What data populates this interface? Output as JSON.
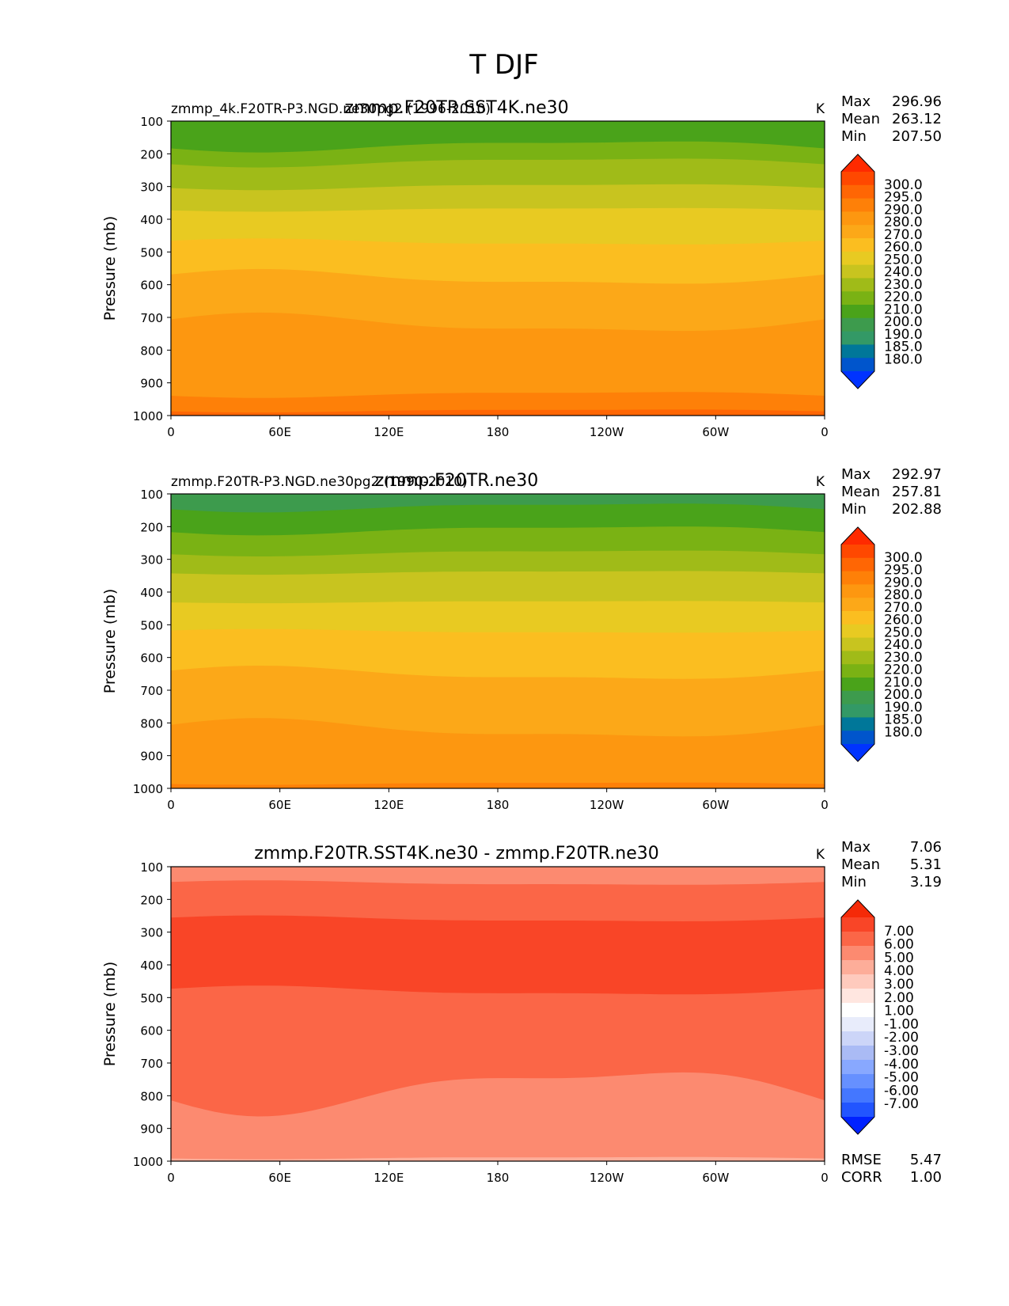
{
  "figure": {
    "title": "T DJF"
  },
  "colors": {
    "abs_levels": [
      "#0033ff",
      "#0055cc",
      "#007799",
      "#339966",
      "#3d9b4d",
      "#4aa31a",
      "#7ab214",
      "#a0bb18",
      "#c8c41f",
      "#e8ca22",
      "#fbbe20",
      "#fca818",
      "#fd9710",
      "#fe8008",
      "#ff6604",
      "#ff4800",
      "#ff2a00"
    ],
    "diff_levels": [
      "#0022ff",
      "#2255ff",
      "#4477ff",
      "#6690ff",
      "#88a8ff",
      "#aabbf5",
      "#ccd5f8",
      "#e8ecfb",
      "#ffffff",
      "#ffe6e0",
      "#fecabd",
      "#fdad99",
      "#fc8a70",
      "#fb6647",
      "#f94527",
      "#f52a08"
    ]
  },
  "chart_data": [
    {
      "type": "contour",
      "name": "test",
      "title": "zmmp.F20TR.SST4K.ne30",
      "subtitle_left": "zmmp_4k.F20TR-P3.NGD.ne30pg2 (1996-2010)",
      "units": "K",
      "ylabel": "Pressure (mb)",
      "ylim": [
        1000,
        100
      ],
      "yticks": [
        "100",
        "200",
        "300",
        "400",
        "500",
        "600",
        "700",
        "800",
        "900",
        "1000"
      ],
      "xticks": [
        "0",
        "60E",
        "120E",
        "180",
        "120W",
        "60W",
        "0"
      ],
      "stats": {
        "max_label": "Max",
        "max": "296.96",
        "mean_label": "Mean",
        "mean": "263.12",
        "min_label": "Min",
        "min": "207.50"
      },
      "colorbar_labels": [
        "300.0",
        "295.0",
        "290.0",
        "280.0",
        "270.0",
        "260.0",
        "250.0",
        "240.0",
        "230.0",
        "220.0",
        "210.0",
        "200.0",
        "190.0",
        "185.0",
        "180.0"
      ],
      "bands": [
        {
          "level": 5,
          "y": 100
        },
        {
          "level": 6,
          "y": 175,
          "wave": 15
        },
        {
          "level": 7,
          "y": 225,
          "wave": 12
        },
        {
          "level": 8,
          "y": 300,
          "wave": 8
        },
        {
          "level": 9,
          "y": 370,
          "wave": 5
        },
        {
          "level": 10,
          "y": 470,
          "wave": -8
        },
        {
          "level": 11,
          "y": 580,
          "wave": -20
        },
        {
          "level": 12,
          "y": 720,
          "wave": -25
        },
        {
          "level": 13,
          "y": 935,
          "wave": 8
        },
        {
          "level": 14,
          "y": 985,
          "wave": 4
        }
      ]
    },
    {
      "type": "contour",
      "name": "reference",
      "title": "zmmp.F20TR.ne30",
      "subtitle_left": "zmmp.F20TR-P3.NGD.ne30pg2 (1990-2010)",
      "units": "K",
      "ylabel": "Pressure (mb)",
      "ylim": [
        1000,
        100
      ],
      "yticks": [
        "100",
        "200",
        "300",
        "400",
        "500",
        "600",
        "700",
        "800",
        "900",
        "1000"
      ],
      "xticks": [
        "0",
        "60E",
        "120E",
        "180",
        "120W",
        "60W",
        "0"
      ],
      "stats": {
        "max_label": "Max",
        "max": "292.97",
        "mean_label": "Mean",
        "mean": "257.81",
        "min_label": "Min",
        "min": "202.88"
      },
      "colorbar_labels": [
        "300.0",
        "295.0",
        "290.0",
        "280.0",
        "270.0",
        "260.0",
        "250.0",
        "240.0",
        "230.0",
        "220.0",
        "210.0",
        "200.0",
        "190.0",
        "185.0",
        "180.0"
      ],
      "bands": [
        {
          "level": 4,
          "y": 100
        },
        {
          "level": 5,
          "y": 140,
          "wave": 12
        },
        {
          "level": 6,
          "y": 210,
          "wave": 12
        },
        {
          "level": 7,
          "y": 280,
          "wave": 8
        },
        {
          "level": 8,
          "y": 340,
          "wave": 5
        },
        {
          "level": 9,
          "y": 430,
          "wave": 3
        },
        {
          "level": 10,
          "y": 520,
          "wave": -5
        },
        {
          "level": 11,
          "y": 650,
          "wave": -18
        },
        {
          "level": 12,
          "y": 820,
          "wave": -25
        },
        {
          "level": 13,
          "y": 985,
          "wave": 3
        }
      ]
    },
    {
      "type": "contour",
      "name": "difference",
      "title": "zmmp.F20TR.SST4K.ne30 - zmmp.F20TR.ne30",
      "subtitle_left": "",
      "units": "K",
      "ylabel": "Pressure (mb)",
      "ylim": [
        1000,
        100
      ],
      "yticks": [
        "100",
        "200",
        "300",
        "400",
        "500",
        "600",
        "700",
        "800",
        "900",
        "1000"
      ],
      "xticks": [
        "0",
        "60E",
        "120E",
        "180",
        "120W",
        "60W",
        "0"
      ],
      "stats": {
        "max_label": "Max",
        "max": "7.06",
        "mean_label": "Mean",
        "mean": "5.31",
        "min_label": "Min",
        "min": "3.19"
      },
      "colorbar_labels": [
        "7.00",
        "6.00",
        "5.00",
        "4.00",
        "3.00",
        "2.00",
        "1.00",
        "-1.00",
        "-2.00",
        "-3.00",
        "-4.00",
        "-5.00",
        "-6.00",
        "-7.00"
      ],
      "extra_stats": {
        "rmse_label": "RMSE",
        "rmse": "5.47",
        "corr_label": "CORR",
        "corr": "1.00"
      },
      "bands": [
        {
          "level": 12,
          "y": 100
        },
        {
          "level": 13,
          "y": 150,
          "wave": -6
        },
        {
          "level": 14,
          "y": 260,
          "wave": -8
        },
        {
          "level": 13,
          "y": 480,
          "wave": -12
        },
        {
          "level": 12,
          "y": 780,
          "wave": 60
        },
        {
          "level": 11,
          "y": 990,
          "wave": 3
        }
      ]
    }
  ]
}
